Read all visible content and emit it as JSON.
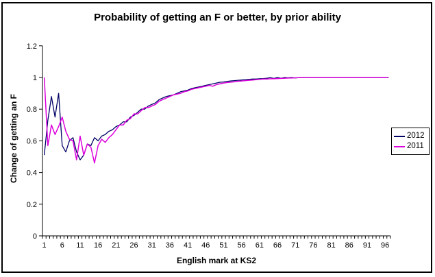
{
  "chart_data": {
    "type": "line",
    "title": "Probability of getting an F or better, by prior ability",
    "xlabel": "English mark at KS2",
    "ylabel": "Change of getting an F",
    "ylim": [
      0,
      1.2
    ],
    "y_ticks": [
      0,
      0.2,
      0.4,
      0.6,
      0.8,
      1,
      1.2
    ],
    "x_tick_labels": [
      1,
      6,
      11,
      16,
      21,
      26,
      31,
      36,
      41,
      46,
      51,
      56,
      61,
      66,
      71,
      76,
      81,
      86,
      91,
      96
    ],
    "grid": false,
    "plot_background": "#ffffff",
    "legend_position": "right",
    "x": [
      1,
      2,
      3,
      4,
      5,
      6,
      7,
      8,
      9,
      10,
      11,
      12,
      13,
      14,
      15,
      16,
      17,
      18,
      19,
      20,
      21,
      22,
      23,
      24,
      25,
      26,
      27,
      28,
      29,
      30,
      31,
      32,
      33,
      34,
      35,
      36,
      37,
      38,
      39,
      40,
      41,
      42,
      43,
      44,
      45,
      46,
      47,
      48,
      49,
      50,
      51,
      52,
      53,
      54,
      55,
      56,
      57,
      58,
      59,
      60,
      61,
      62,
      63,
      64,
      65,
      66,
      67,
      68,
      69,
      70,
      71,
      72,
      73,
      74,
      75,
      76,
      77,
      78,
      79,
      80,
      81,
      82,
      83,
      84,
      85,
      86,
      87,
      88,
      89,
      90,
      91,
      92,
      93,
      94,
      95,
      96,
      97
    ],
    "series": [
      {
        "name": "2012",
        "color": "#000066",
        "values": [
          0.51,
          0.73,
          0.88,
          0.75,
          0.9,
          0.57,
          0.53,
          0.6,
          0.62,
          0.53,
          0.48,
          0.51,
          0.58,
          0.57,
          0.62,
          0.6,
          0.63,
          0.64,
          0.66,
          0.67,
          0.69,
          0.7,
          0.72,
          0.72,
          0.75,
          0.76,
          0.78,
          0.8,
          0.8,
          0.82,
          0.83,
          0.84,
          0.86,
          0.87,
          0.88,
          0.885,
          0.89,
          0.9,
          0.91,
          0.915,
          0.92,
          0.93,
          0.935,
          0.94,
          0.945,
          0.95,
          0.955,
          0.96,
          0.965,
          0.97,
          0.972,
          0.975,
          0.978,
          0.98,
          0.982,
          0.984,
          0.986,
          0.988,
          0.99,
          0.99,
          0.992,
          0.993,
          0.995,
          0.999,
          0.994,
          1.0,
          0.995,
          1.0,
          0.998,
          1.0,
          0.997,
          1.0,
          1.0,
          1.0,
          1.0,
          1.0,
          1.0,
          1.0,
          1.0,
          1.0,
          1.0,
          1.0,
          1.0,
          1.0,
          1.0,
          1.0,
          1.0,
          1.0,
          1.0,
          1.0,
          1.0,
          1.0,
          1.0,
          1.0,
          1.0,
          1.0,
          1.0
        ]
      },
      {
        "name": "2011",
        "color": "#dd00dd",
        "values": [
          1.0,
          0.57,
          0.7,
          0.64,
          0.69,
          0.75,
          0.66,
          0.61,
          0.6,
          0.48,
          0.63,
          0.51,
          0.58,
          0.56,
          0.46,
          0.57,
          0.61,
          0.59,
          0.62,
          0.64,
          0.67,
          0.7,
          0.7,
          0.73,
          0.74,
          0.77,
          0.77,
          0.79,
          0.81,
          0.81,
          0.82,
          0.83,
          0.85,
          0.86,
          0.87,
          0.88,
          0.89,
          0.895,
          0.9,
          0.91,
          0.915,
          0.925,
          0.93,
          0.935,
          0.94,
          0.945,
          0.95,
          0.945,
          0.955,
          0.96,
          0.965,
          0.968,
          0.97,
          0.973,
          0.976,
          0.978,
          0.98,
          0.982,
          0.984,
          0.986,
          0.988,
          0.99,
          0.99,
          0.992,
          0.992,
          0.993,
          0.994,
          0.995,
          0.996,
          0.997,
          0.998,
          0.999,
          1.0,
          1.0,
          1.0,
          1.0,
          1.0,
          1.0,
          1.0,
          1.0,
          1.0,
          1.0,
          1.0,
          1.0,
          1.0,
          1.0,
          1.0,
          1.0,
          1.0,
          1.0,
          1.0,
          1.0,
          1.0,
          1.0,
          1.0,
          1.0,
          1.0
        ]
      }
    ]
  }
}
